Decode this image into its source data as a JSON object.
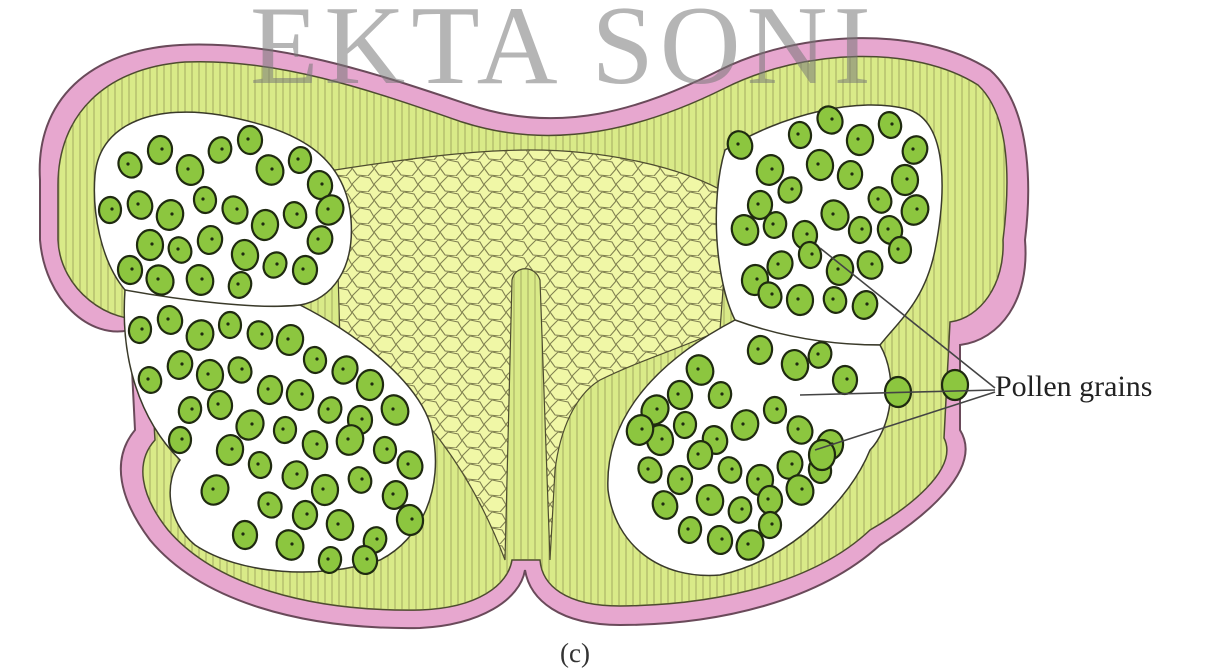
{
  "figure": {
    "watermark": "EKTA SONI",
    "label": "Pollen grains",
    "caption": "(c)"
  },
  "colors": {
    "epidermis": "#e9a9d0",
    "wall": "#dcec8a",
    "wall_light": "#f1f6b6",
    "connective": "#eef6a0",
    "pollen": "#8cc63f",
    "outline": "#3a3a2a"
  }
}
